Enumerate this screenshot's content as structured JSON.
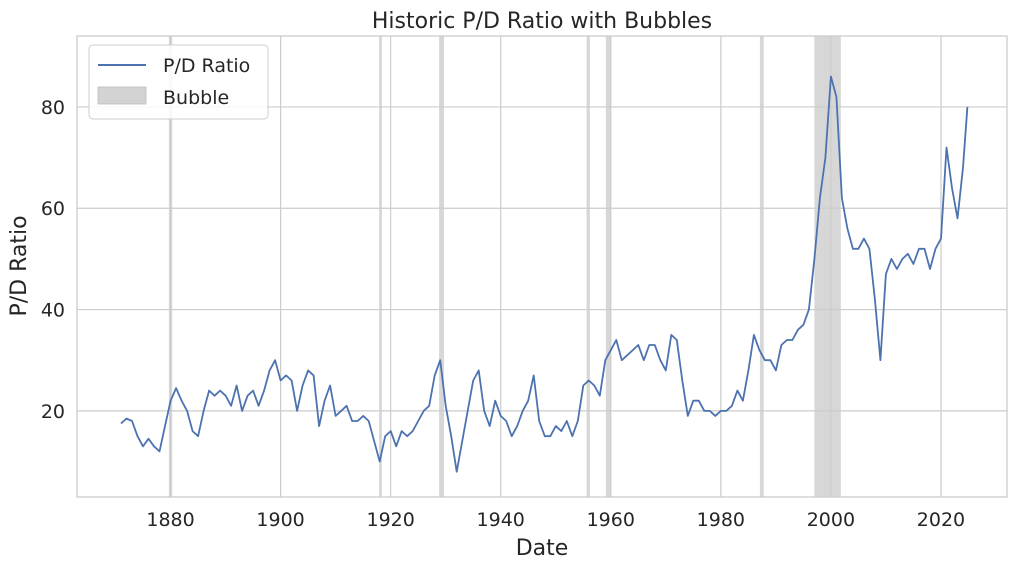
{
  "chart_data": {
    "type": "line",
    "title": "Historic P/D Ratio with Bubbles",
    "xlabel": "Date",
    "ylabel": "P/D Ratio",
    "xlim": [
      1863,
      2032
    ],
    "ylim": [
      3,
      94
    ],
    "x_ticks": [
      1880,
      1900,
      1920,
      1940,
      1960,
      1980,
      2000,
      2020
    ],
    "y_ticks": [
      20,
      40,
      60,
      80
    ],
    "grid": true,
    "legend_position": "top-left",
    "colors": {
      "line": "#4c72b0",
      "bubble": "#d3d3d3",
      "grid": "#cccccc",
      "axes": "#cccccc"
    },
    "series": [
      {
        "name": "P/D Ratio",
        "x": [
          1871,
          1872,
          1873,
          1874,
          1875,
          1876,
          1877,
          1878,
          1879,
          1880,
          1881,
          1882,
          1883,
          1884,
          1885,
          1886,
          1887,
          1888,
          1889,
          1890,
          1891,
          1892,
          1893,
          1894,
          1895,
          1896,
          1897,
          1898,
          1899,
          1900,
          1901,
          1902,
          1903,
          1904,
          1905,
          1906,
          1907,
          1908,
          1909,
          1910,
          1911,
          1912,
          1913,
          1914,
          1915,
          1916,
          1917,
          1918,
          1919,
          1920,
          1921,
          1922,
          1923,
          1924,
          1925,
          1926,
          1927,
          1928,
          1929,
          1930,
          1931,
          1932,
          1933,
          1934,
          1935,
          1936,
          1937,
          1938,
          1939,
          1940,
          1941,
          1942,
          1943,
          1944,
          1945,
          1946,
          1947,
          1948,
          1949,
          1950,
          1951,
          1952,
          1953,
          1954,
          1955,
          1956,
          1957,
          1958,
          1959,
          1960,
          1961,
          1962,
          1963,
          1964,
          1965,
          1966,
          1967,
          1968,
          1969,
          1970,
          1971,
          1972,
          1973,
          1974,
          1975,
          1976,
          1977,
          1978,
          1979,
          1980,
          1981,
          1982,
          1983,
          1984,
          1985,
          1986,
          1987,
          1988,
          1989,
          1990,
          1991,
          1992,
          1993,
          1994,
          1995,
          1996,
          1997,
          1998,
          1999,
          2000,
          2001,
          2002,
          2003,
          2004,
          2005,
          2006,
          2007,
          2008,
          2009,
          2010,
          2011,
          2012,
          2013,
          2014,
          2015,
          2016,
          2017,
          2018,
          2019,
          2020,
          2021,
          2022,
          2023,
          2024,
          2024.8
        ],
        "values": [
          17.5,
          18.5,
          18,
          15,
          13,
          14.5,
          13,
          12,
          17,
          22,
          24.5,
          22,
          20,
          16,
          15,
          20,
          24,
          23,
          24,
          23,
          21,
          25,
          20,
          23,
          24,
          21,
          24,
          28,
          30,
          26,
          27,
          26,
          20,
          25,
          28,
          27,
          17,
          22,
          25,
          19,
          20,
          21,
          18,
          18,
          19,
          18,
          14,
          10,
          15,
          16,
          13,
          16,
          15,
          16,
          18,
          20,
          21,
          27,
          30,
          21,
          15,
          8,
          14,
          20,
          26,
          28,
          20,
          17,
          22,
          19,
          18,
          15,
          17,
          20,
          22,
          27,
          18,
          15,
          15,
          17,
          16,
          18,
          15,
          18,
          25,
          26,
          25,
          23,
          30,
          32,
          34,
          30,
          31,
          32,
          33,
          30,
          33,
          33,
          30,
          28,
          35,
          34,
          26,
          19,
          22,
          22,
          20,
          20,
          19,
          20,
          20,
          21,
          24,
          22,
          28,
          35,
          32,
          30,
          30,
          28,
          33,
          34,
          34,
          36,
          37,
          40,
          50,
          62,
          70,
          86,
          82,
          62,
          56,
          52,
          52,
          54,
          52,
          42,
          30,
          47,
          50,
          48,
          50,
          51,
          49,
          52,
          52,
          48,
          52,
          54,
          72,
          64,
          58,
          68,
          80
        ]
      }
    ],
    "bubbles": [
      {
        "label": "Bubble",
        "periods": [
          [
            1879.7,
            1880.3
          ],
          [
            1917.9,
            1918.4
          ],
          [
            1928.8,
            1929.7
          ],
          [
            1955.6,
            1956.2
          ],
          [
            1959.1,
            1960.0
          ],
          [
            1987.1,
            1987.8
          ],
          [
            1997.0,
            2001.8
          ]
        ]
      }
    ]
  }
}
